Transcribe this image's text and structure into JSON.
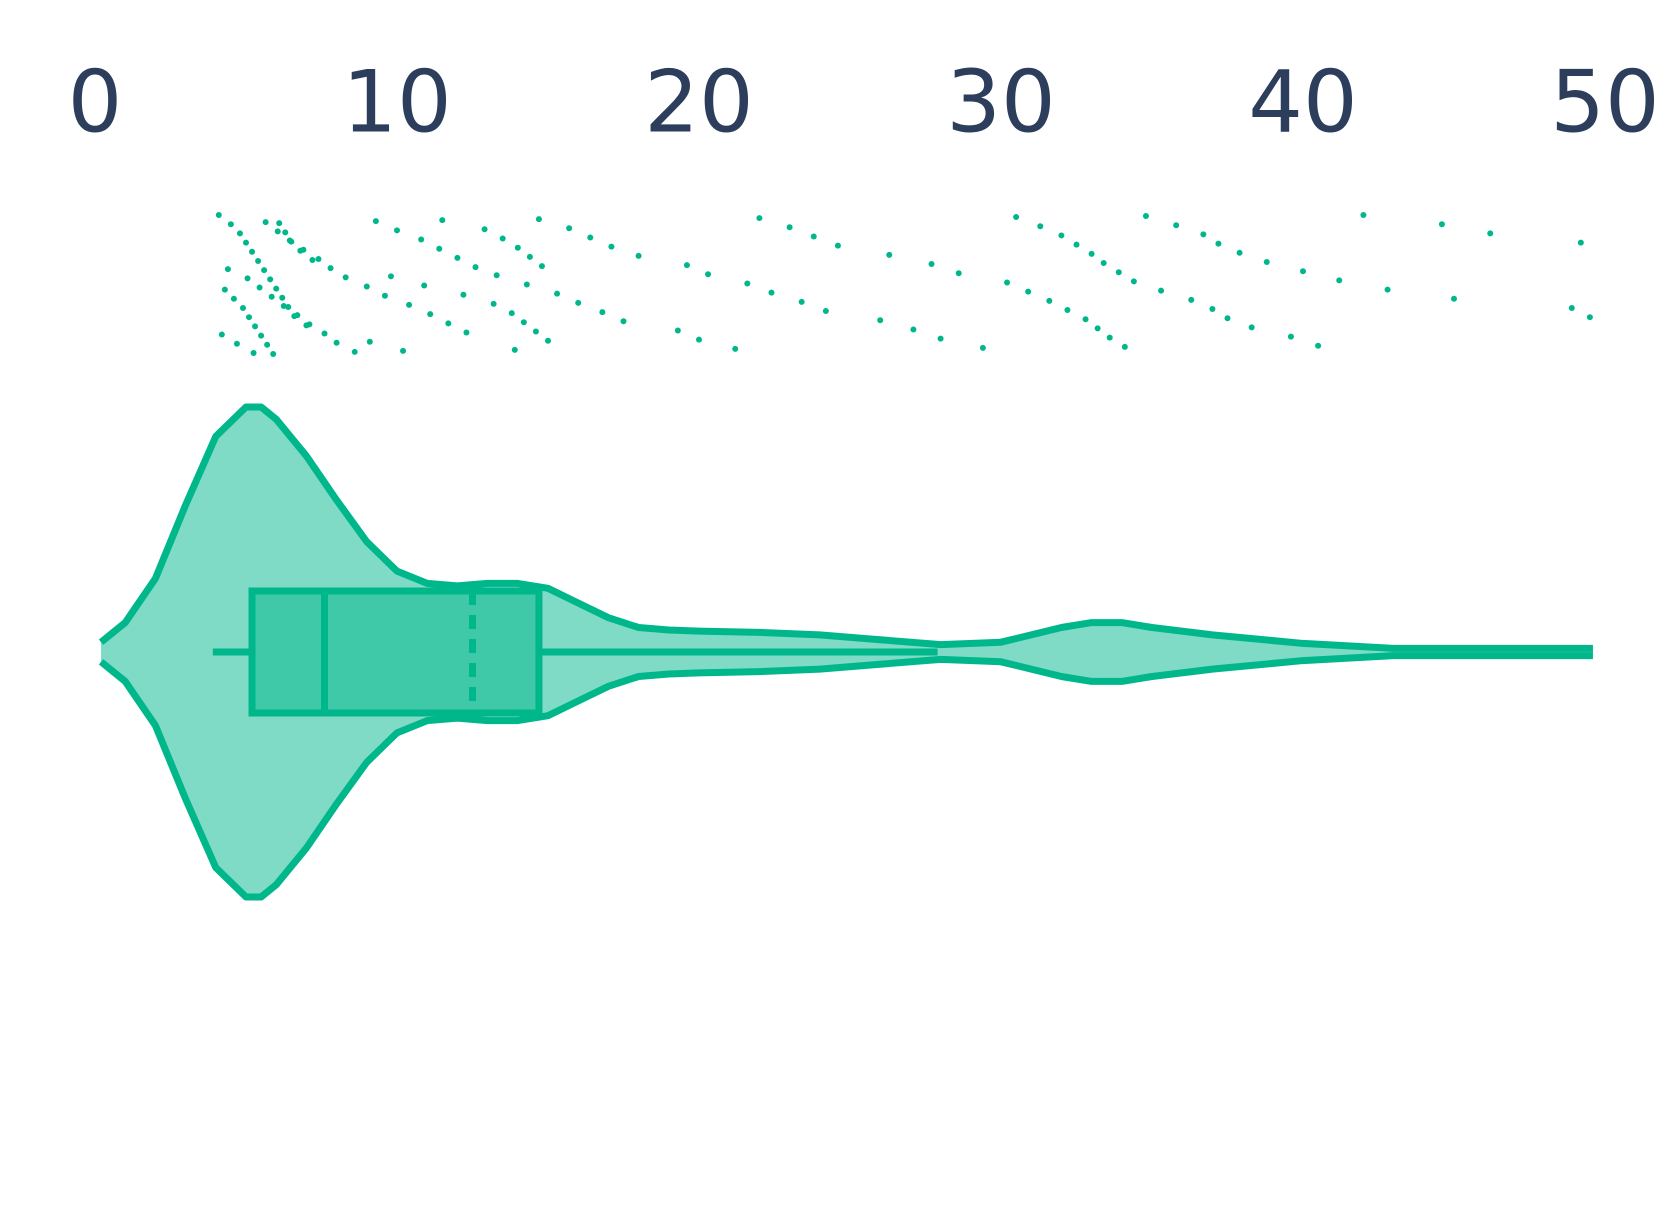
{
  "chart_data": {
    "type": "violin",
    "xlim": [
      0,
      50
    ],
    "xticks": [
      0,
      10,
      20,
      30,
      40,
      50
    ],
    "color": "#00b78c",
    "tick_color": "#2c3e5c",
    "points": [
      4.1,
      4.3,
      4.5,
      4.6,
      4.8,
      4.9,
      5.0,
      5.1,
      5.2,
      5.3,
      5.4,
      5.5,
      5.6,
      5.7,
      5.8,
      5.9,
      6.0,
      6.1,
      6.2,
      6.3,
      6.4,
      6.5,
      6.6,
      6.8,
      7.0,
      7.2,
      4.2,
      4.4,
      4.7,
      5.05,
      5.25,
      5.45,
      5.65,
      5.85,
      6.05,
      6.25,
      6.45,
      6.7,
      6.9,
      7.1,
      7.4,
      7.6,
      7.8,
      8.0,
      8.3,
      8.6,
      9.0,
      9.3,
      9.6,
      10.0,
      10.4,
      10.8,
      11.1,
      11.4,
      11.7,
      12.0,
      12.3,
      12.6,
      9.1,
      9.8,
      10.2,
      10.9,
      11.5,
      12.2,
      12.9,
      13.2,
      13.5,
      13.8,
      14.0,
      14.2,
      14.4,
      14.6,
      14.8,
      15.0,
      13.3,
      13.9,
      14.3,
      14.7,
      15.3,
      15.7,
      16.0,
      16.4,
      16.8,
      17.1,
      17.5,
      18.0,
      19.3,
      19.6,
      20.0,
      20.3,
      21.2,
      21.6,
      22.0,
      22.4,
      23.0,
      23.4,
      23.8,
      24.2,
      24.6,
      26.0,
      26.3,
      27.1,
      27.7,
      28.0,
      28.6,
      29.4,
      30.2,
      30.5,
      30.9,
      31.3,
      31.6,
      32.0,
      32.2,
      32.5,
      32.8,
      33.0,
      33.2,
      33.4,
      33.6,
      33.9,
      34.1,
      34.4,
      34.8,
      35.3,
      35.8,
      36.3,
      36.7,
      37.0,
      37.2,
      37.5,
      37.9,
      38.3,
      38.8,
      39.6,
      40.0,
      40.5,
      41.2,
      42.0,
      42.8,
      44.6,
      45.0,
      46.2,
      48.9,
      49.2,
      49.5
    ],
    "violin": {
      "x": [
        0.2,
        1,
        2,
        3,
        4,
        5,
        5.5,
        6,
        7,
        8,
        9,
        10,
        11,
        12,
        13,
        14,
        15,
        16,
        17,
        18,
        19,
        20,
        22,
        24,
        26,
        28,
        30,
        32,
        33,
        34,
        35,
        37,
        40,
        43,
        46,
        49.6
      ],
      "width": [
        0.04,
        0.12,
        0.3,
        0.6,
        0.88,
        1.0,
        1.0,
        0.95,
        0.8,
        0.62,
        0.45,
        0.33,
        0.28,
        0.27,
        0.28,
        0.28,
        0.26,
        0.2,
        0.14,
        0.1,
        0.09,
        0.085,
        0.08,
        0.07,
        0.05,
        0.03,
        0.04,
        0.1,
        0.12,
        0.12,
        0.1,
        0.07,
        0.035,
        0.015,
        0.015,
        0.015
      ]
    },
    "box": {
      "whisker_low": 3.9,
      "q1": 5.2,
      "median": 7.6,
      "mean": 12.5,
      "q3": 14.7,
      "whisker_high": 27.9
    }
  }
}
